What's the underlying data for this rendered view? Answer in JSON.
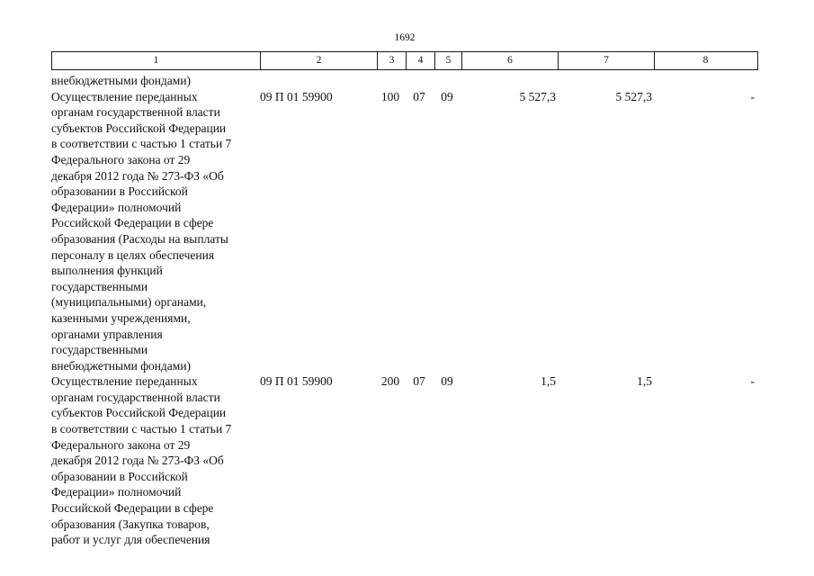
{
  "page_number": "1692",
  "table": {
    "header_columns": [
      "1",
      "2",
      "3",
      "4",
      "5",
      "6",
      "7",
      "8"
    ],
    "rows": [
      {
        "name": "внебюджетными фондами)",
        "code": "",
        "c3": "",
        "c4": "",
        "c5": "",
        "c6": "",
        "c7": "",
        "c8": ""
      },
      {
        "name": "Осуществление переданных\nорганам государственной власти\nсубъектов Российской Федерации\nв соответствии с частью 1 статьи 7\nФедерального закона от 29\nдекабря 2012 года № 273-ФЗ «Об\nобразовании в Российской\nФедерации» полномочий\nРоссийской Федерации в сфере\nобразования (Расходы на выплаты\nперсоналу в целях обеспечения\nвыполнения функций\nгосударственными\n(муниципальными) органами,\nказенными учреждениями,\nорганами управления\nгосударственными\nвнебюджетными фондами)",
        "code": "09 П 01 59900",
        "c3": "100",
        "c4": "07",
        "c5": "09",
        "c6": "5 527,3",
        "c7": "5 527,3",
        "c8": "-"
      },
      {
        "name": "Осуществление переданных\nорганам государственной власти\nсубъектов Российской Федерации\nв соответствии с частью 1 статьи 7\nФедерального закона от 29\nдекабря 2012 года № 273-ФЗ «Об\nобразовании в Российской\nФедерации» полномочий\nРоссийской Федерации в сфере\nобразования (Закупка товаров,\nработ и услуг для обеспечения",
        "code": "09 П 01 59900",
        "c3": "200",
        "c4": "07",
        "c5": "09",
        "c6": "1,5",
        "c7": "1,5",
        "c8": "-"
      }
    ]
  }
}
